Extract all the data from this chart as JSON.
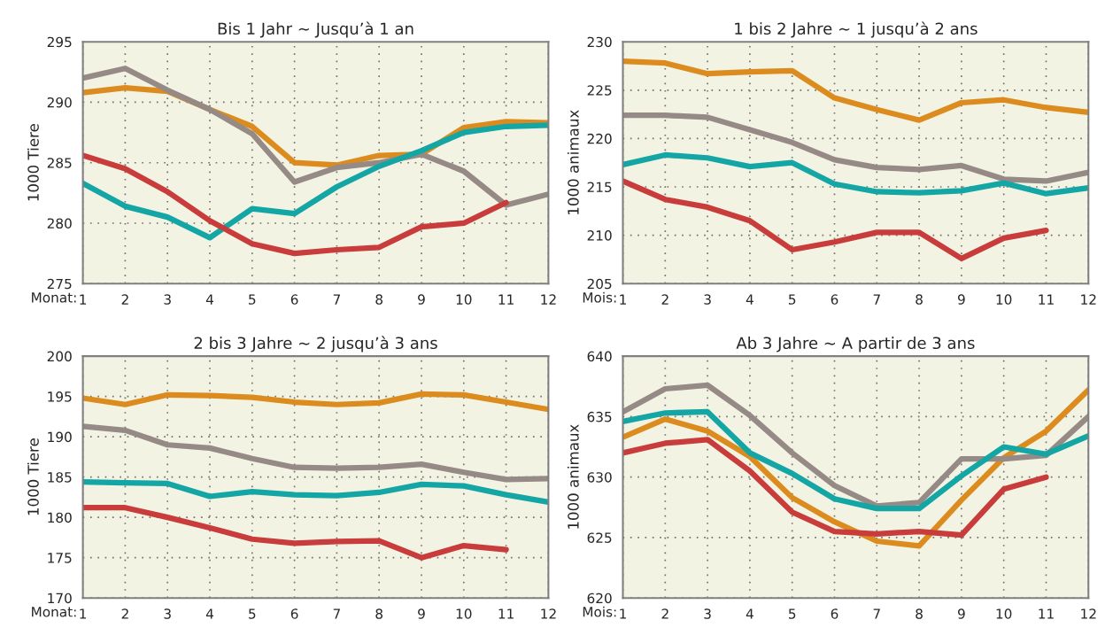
{
  "chart_data": [
    {
      "type": "line",
      "title": "Bis 1 Jahr ~ Jusqu’à 1 an",
      "xlabel": "Monat:",
      "ylabel": "1000 Tiere",
      "x": [
        1,
        2,
        3,
        4,
        5,
        6,
        7,
        8,
        9,
        10,
        11,
        12
      ],
      "xlim": [
        1,
        12
      ],
      "xticks": [
        1,
        2,
        3,
        4,
        5,
        6,
        7,
        8,
        9,
        10,
        11,
        12
      ],
      "ylim": [
        275,
        295
      ],
      "yticks": [
        275,
        280,
        285,
        290,
        295
      ],
      "grid": true,
      "line_style": "solid",
      "marker": "none",
      "series": [
        {
          "color": "#dc8c1e",
          "values": [
            290.8,
            291.2,
            290.9,
            289.4,
            288.0,
            285.0,
            284.8,
            285.6,
            285.7,
            287.9,
            288.4,
            288.3
          ]
        },
        {
          "color": "#968a86",
          "values": [
            292.0,
            292.8,
            291.0,
            289.4,
            287.4,
            283.4,
            284.6,
            285.0,
            285.7,
            284.3,
            281.5,
            282.4
          ]
        },
        {
          "color": "#14a5a5",
          "values": [
            283.3,
            281.4,
            280.5,
            278.8,
            281.2,
            280.8,
            283.0,
            284.7,
            286.0,
            287.5,
            288.0,
            288.1
          ]
        },
        {
          "color": "#c83c3c",
          "values": [
            285.6,
            284.5,
            282.6,
            280.2,
            278.3,
            277.5,
            277.8,
            278.0,
            279.7,
            280.0,
            281.7,
            null
          ]
        }
      ]
    },
    {
      "type": "line",
      "title": "1 bis 2 Jahre ~ 1 jusqu’à 2 ans",
      "xlabel": "Mois:",
      "ylabel": "1000 animaux",
      "x": [
        1,
        2,
        3,
        4,
        5,
        6,
        7,
        8,
        9,
        10,
        11,
        12
      ],
      "xlim": [
        1,
        12
      ],
      "xticks": [
        1,
        2,
        3,
        4,
        5,
        6,
        7,
        8,
        9,
        10,
        11,
        12
      ],
      "ylim": [
        205,
        230
      ],
      "yticks": [
        205,
        210,
        215,
        220,
        225,
        230
      ],
      "grid": true,
      "line_style": "solid",
      "marker": "none",
      "series": [
        {
          "color": "#dc8c1e",
          "values": [
            228.0,
            227.8,
            226.7,
            226.9,
            227.0,
            224.2,
            223.0,
            221.9,
            223.7,
            224.0,
            223.2,
            222.7
          ]
        },
        {
          "color": "#968a86",
          "values": [
            222.4,
            222.4,
            222.2,
            220.9,
            219.6,
            217.8,
            217.0,
            216.8,
            217.2,
            215.8,
            215.6,
            216.5
          ]
        },
        {
          "color": "#14a5a5",
          "values": [
            217.3,
            218.3,
            218.0,
            217.1,
            217.5,
            215.3,
            214.5,
            214.4,
            214.6,
            215.4,
            214.3,
            214.9
          ]
        },
        {
          "color": "#c83c3c",
          "values": [
            215.6,
            213.7,
            212.9,
            211.5,
            208.5,
            209.3,
            210.3,
            210.3,
            207.6,
            209.7,
            210.5,
            null
          ]
        }
      ]
    },
    {
      "type": "line",
      "title": "2 bis 3 Jahre ~ 2 jusqu’à 3 ans",
      "xlabel": "Monat:",
      "ylabel": "1000 Tiere",
      "x": [
        1,
        2,
        3,
        4,
        5,
        6,
        7,
        8,
        9,
        10,
        11,
        12
      ],
      "xlim": [
        1,
        12
      ],
      "xticks": [
        1,
        2,
        3,
        4,
        5,
        6,
        7,
        8,
        9,
        10,
        11,
        12
      ],
      "ylim": [
        170,
        200
      ],
      "yticks": [
        170,
        175,
        180,
        185,
        190,
        195,
        200
      ],
      "grid": true,
      "line_style": "solid",
      "marker": "none",
      "series": [
        {
          "color": "#dc8c1e",
          "values": [
            194.8,
            194.0,
            195.2,
            195.1,
            194.9,
            194.3,
            194.0,
            194.2,
            195.3,
            195.2,
            194.3,
            193.4
          ]
        },
        {
          "color": "#968a86",
          "values": [
            191.3,
            190.8,
            189.0,
            188.6,
            187.3,
            186.2,
            186.1,
            186.2,
            186.6,
            185.6,
            184.7,
            184.8
          ]
        },
        {
          "color": "#14a5a5",
          "values": [
            184.4,
            184.3,
            184.2,
            182.6,
            183.2,
            182.8,
            182.7,
            183.1,
            184.1,
            183.9,
            182.8,
            181.9
          ]
        },
        {
          "color": "#c83c3c",
          "values": [
            181.2,
            181.2,
            180.0,
            178.7,
            177.3,
            176.8,
            177.0,
            177.1,
            175.0,
            176.5,
            176.0,
            null
          ]
        }
      ]
    },
    {
      "type": "line",
      "title": "Ab 3 Jahre ~ A partir de 3 ans",
      "xlabel": "Mois:",
      "ylabel": "1000 animaux",
      "x": [
        1,
        2,
        3,
        4,
        5,
        6,
        7,
        8,
        9,
        10,
        11,
        12
      ],
      "xlim": [
        1,
        12
      ],
      "xticks": [
        1,
        2,
        3,
        4,
        5,
        6,
        7,
        8,
        9,
        10,
        11,
        12
      ],
      "ylim": [
        620,
        640
      ],
      "yticks": [
        620,
        625,
        630,
        635,
        640
      ],
      "grid": true,
      "line_style": "solid",
      "marker": "none",
      "series": [
        {
          "color": "#dc8c1e",
          "values": [
            633.3,
            634.8,
            633.8,
            631.7,
            628.3,
            626.3,
            624.7,
            624.3,
            628.1,
            631.6,
            633.8,
            637.2
          ]
        },
        {
          "color": "#968a86",
          "values": [
            635.4,
            637.3,
            637.6,
            635.1,
            632.0,
            629.3,
            627.6,
            627.9,
            631.5,
            631.5,
            631.8,
            635.0
          ]
        },
        {
          "color": "#14a5a5",
          "values": [
            634.6,
            635.3,
            635.4,
            632.0,
            630.3,
            628.2,
            627.4,
            627.4,
            630.1,
            632.5,
            631.9,
            633.4
          ]
        },
        {
          "color": "#c83c3c",
          "values": [
            632.0,
            632.8,
            633.1,
            630.5,
            627.1,
            625.5,
            625.3,
            625.5,
            625.2,
            629.0,
            630.0,
            null
          ]
        }
      ]
    }
  ]
}
